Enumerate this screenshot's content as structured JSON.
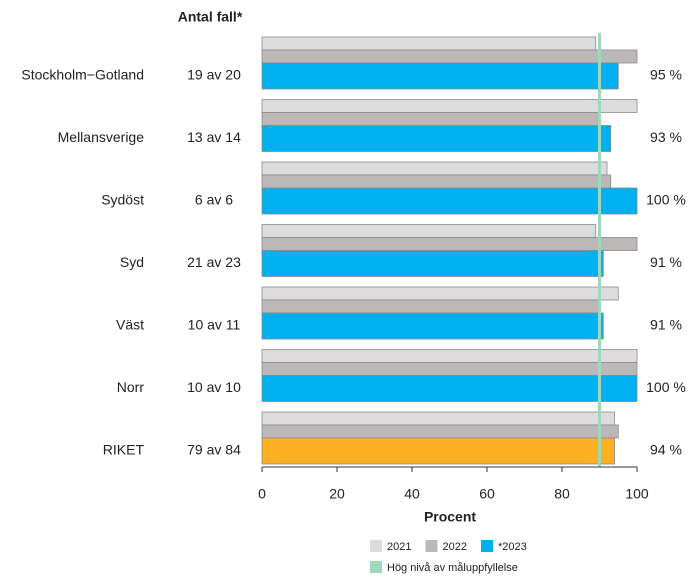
{
  "chart_data": {
    "type": "hbar",
    "count_header": "Antal fall*",
    "categories": [
      "Stockholm−Gotland",
      "Mellansverige",
      "Sydöst",
      "Syd",
      "Väst",
      "Norr",
      "RIKET"
    ],
    "counts": [
      "19 av 20",
      "13 av 14",
      "6 av 6",
      "21 av 23",
      "10 av 11",
      "10 av 10",
      "79 av 84"
    ],
    "series": [
      {
        "name": "2021",
        "color": "#dcdcdc",
        "values": [
          89,
          100,
          92,
          89,
          95,
          100,
          94
        ]
      },
      {
        "name": "2022",
        "color": "#bdb8b8",
        "values": [
          100,
          90,
          93,
          100,
          90,
          100,
          95
        ]
      },
      {
        "name": "*2023",
        "color": "#00b0f0",
        "point_colors": [
          "#00b0f0",
          "#00b0f0",
          "#00b0f0",
          "#00b0f0",
          "#00b0f0",
          "#00b0f0",
          "#fdb022"
        ],
        "values": [
          95,
          93,
          100,
          91,
          91,
          100,
          94
        ],
        "value_labels": [
          "95 %",
          "93 %",
          "100 %",
          "91 %",
          "91 %",
          "100 %",
          "94 %"
        ]
      }
    ],
    "threshold": {
      "value": 90,
      "label": "Hög nivå av måluppfyllelse",
      "color": "#9fd8b8"
    },
    "xlabel": "Procent",
    "xlim": [
      0,
      100
    ],
    "xticks": [
      0,
      20,
      40,
      60,
      80,
      100
    ]
  }
}
